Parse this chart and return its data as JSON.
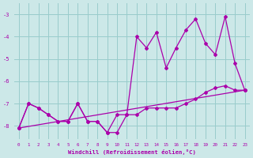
{
  "xlabel": "Windchill (Refroidissement éolien,°C)",
  "xlim": [
    -0.5,
    23.5
  ],
  "ylim": [
    -8.6,
    -2.5
  ],
  "yticks": [
    -8,
    -7,
    -6,
    -5,
    -4,
    -3
  ],
  "xticks": [
    0,
    1,
    2,
    3,
    4,
    5,
    6,
    7,
    8,
    9,
    10,
    11,
    12,
    13,
    14,
    15,
    16,
    17,
    18,
    19,
    20,
    21,
    22,
    23
  ],
  "bg_color": "#cce8e8",
  "line_color": "#aa00aa",
  "grid_color": "#99cccc",
  "series": [
    {
      "x": [
        0,
        1,
        2,
        3,
        4,
        5,
        6,
        7,
        8,
        9,
        10,
        11,
        12,
        13,
        14,
        15,
        16,
        17,
        18,
        19,
        20,
        21,
        22,
        23
      ],
      "y": [
        -8.1,
        -7.0,
        -7.2,
        -7.5,
        -7.8,
        -7.8,
        -7.0,
        -7.8,
        -7.8,
        -8.3,
        -7.5,
        -7.5,
        -7.5,
        -7.2,
        -7.2,
        -7.2,
        -7.2,
        -7.0,
        -6.8,
        -6.5,
        -6.3,
        -6.2,
        -6.4,
        -6.4
      ]
    },
    {
      "x": [
        0,
        1,
        2,
        3,
        4,
        5,
        6,
        7,
        8,
        9,
        10,
        11,
        12,
        13,
        14,
        15,
        16,
        17,
        18,
        19,
        20,
        21,
        22,
        23
      ],
      "y": [
        -8.1,
        -7.0,
        -7.2,
        -7.5,
        -7.8,
        -7.8,
        -7.0,
        -7.8,
        -7.8,
        -8.3,
        -8.3,
        -7.5,
        -4.0,
        -4.5,
        -3.8,
        -5.4,
        -4.5,
        -3.7,
        -3.2,
        -4.3,
        -4.8,
        -3.1,
        -5.2,
        -6.4
      ]
    },
    {
      "x": [
        0,
        23
      ],
      "y": [
        -8.1,
        -6.4
      ]
    }
  ]
}
